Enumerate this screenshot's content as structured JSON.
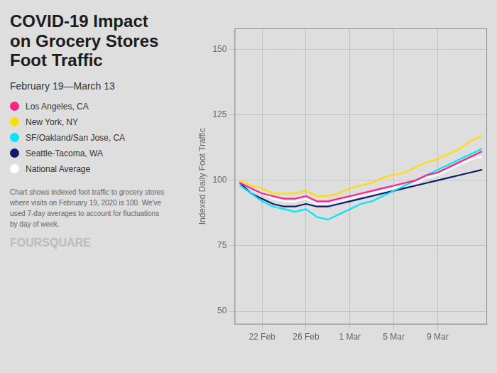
{
  "chart_data": {
    "type": "line",
    "title": "COVID-19 Impact\non Grocery Stores\nFoot Traffic",
    "subtitle": "February 19—March 13",
    "ylabel": "Indexed Daily Foot Traffic",
    "annotations": [
      "Chart shows indexed foot traffic to grocery stores\nwhere visits on February 19, 2020 is 100. We've\nused 7-day averages to account for fluctuations\nby day of week.",
      "FOURSQUARE"
    ],
    "categories": [
      null,
      null,
      "22 Feb",
      null,
      null,
      null,
      "26 Feb",
      null,
      null,
      null,
      "1 Mar",
      null,
      null,
      null,
      "5 Mar",
      null,
      null,
      null,
      "9 Mar",
      null,
      null,
      null,
      null
    ],
    "series": [
      {
        "name": "Los Angeles, CA",
        "color": "#ff2288",
        "values": [
          99,
          97,
          95,
          94,
          93,
          93,
          94,
          92,
          92,
          93,
          94,
          95,
          96,
          97,
          98,
          99,
          100,
          102,
          103,
          105,
          107,
          109,
          111
        ]
      },
      {
        "name": "New York, NY",
        "color": "#ffdd00",
        "values": [
          100,
          98,
          97,
          95,
          95,
          95,
          96,
          94,
          94,
          95,
          97,
          98,
          99,
          101,
          102,
          103,
          105,
          107,
          108,
          110,
          112,
          115,
          117
        ]
      },
      {
        "name": "SF/Oakland/San Jose, CA",
        "color": "#00e5ff",
        "values": [
          98,
          95,
          92,
          90,
          89,
          88,
          89,
          86,
          85,
          87,
          89,
          91,
          92,
          94,
          96,
          98,
          100,
          102,
          104,
          106,
          108,
          110,
          112
        ]
      },
      {
        "name": "Seattle-Tacoma, WA",
        "color": "#0d1b6e",
        "values": [
          99,
          95,
          93,
          91,
          90,
          90,
          91,
          90,
          90,
          91,
          92,
          93,
          94,
          95,
          96,
          97,
          98,
          99,
          100,
          101,
          102,
          103,
          104
        ]
      },
      {
        "name": "National Average",
        "color": "#ffffff",
        "values": [
          99,
          97,
          95,
          93,
          92,
          92,
          93,
          91,
          91,
          92,
          93,
          94,
          95,
          96,
          97,
          98,
          99,
          101,
          102,
          104,
          106,
          108,
          109
        ]
      }
    ],
    "ylim": [
      45,
      158
    ],
    "yticks": [
      50,
      75,
      100,
      125,
      150
    ],
    "grid": true,
    "legend": "left"
  }
}
